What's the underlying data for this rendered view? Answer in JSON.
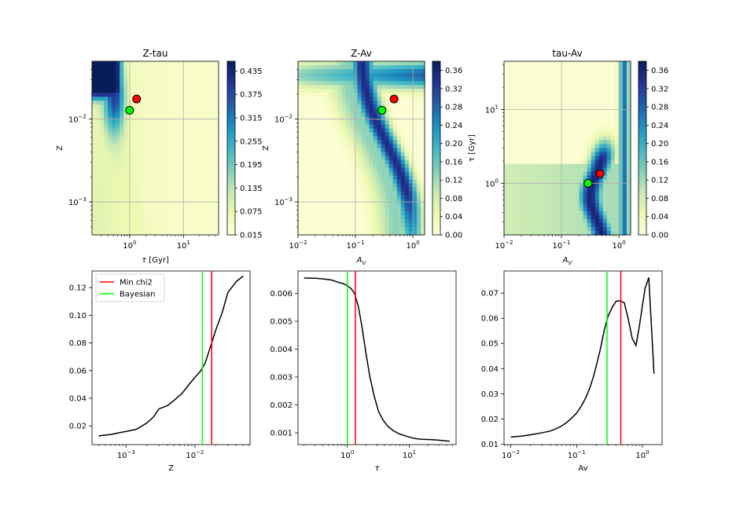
{
  "figure": {
    "colormap_stops": [
      "#ffffd9",
      "#edf8b1",
      "#c7e9b4",
      "#7fcdbb",
      "#41b6c4",
      "#1d91c0",
      "#225ea8",
      "#253494",
      "#081d58"
    ],
    "marker_colors": {
      "min_chi2": "#ff0000",
      "bayesian": "#00ff00",
      "line": "#000000"
    }
  },
  "chart_data": [
    {
      "type": "heatmap",
      "id": "z-tau",
      "title": "Z-tau",
      "xlabel_main": "τ",
      "xlabel_sub": " [Gyr]",
      "ylabel": "Z",
      "xscale": "log",
      "yscale": "log",
      "xlim": [
        0.2,
        45
      ],
      "ylim": [
        0.0004,
        0.05
      ],
      "xticks": [
        {
          "v": 1,
          "b": "10",
          "e": "0"
        },
        {
          "v": 10,
          "b": "10",
          "e": "1"
        }
      ],
      "yticks": [
        {
          "v": 0.001,
          "b": "10",
          "e": "−3"
        },
        {
          "v": 0.01,
          "b": "10",
          "e": "−2"
        }
      ],
      "colorbar": {
        "min": 0.015,
        "max": 0.46,
        "ticks": [
          "0.015",
          "0.075",
          "0.135",
          "0.195",
          "0.255",
          "0.315",
          "0.375",
          "0.435"
        ]
      },
      "red_point": {
        "x": 1.35,
        "y": 0.0175
      },
      "green_point": {
        "x": 1.0,
        "y": 0.0128
      }
    },
    {
      "type": "heatmap",
      "id": "z-av",
      "title": "Z-Av",
      "xlabel_main": "A",
      "xlabel_sub": "V",
      "ylabel": "Z",
      "xscale": "log",
      "yscale": "log",
      "xlim": [
        0.01,
        1.6
      ],
      "ylim": [
        0.0004,
        0.05
      ],
      "xticks": [
        {
          "v": 0.01,
          "b": "10",
          "e": "−2"
        },
        {
          "v": 0.1,
          "b": "10",
          "e": "−1"
        },
        {
          "v": 1,
          "b": "10",
          "e": "0"
        }
      ],
      "yticks": [
        {
          "v": 0.001,
          "b": "10",
          "e": "−3"
        },
        {
          "v": 0.01,
          "b": "10",
          "e": "−2"
        }
      ],
      "colorbar": {
        "min": 0,
        "max": 0.38,
        "ticks": [
          "0.00",
          "0.04",
          "0.08",
          "0.12",
          "0.16",
          "0.20",
          "0.24",
          "0.28",
          "0.32",
          "0.36"
        ]
      },
      "red_point": {
        "x": 0.47,
        "y": 0.0175
      },
      "green_point": {
        "x": 0.29,
        "y": 0.0128
      }
    },
    {
      "type": "heatmap",
      "id": "tau-av",
      "title": "tau-Av",
      "xlabel_main": "A",
      "xlabel_sub": "V",
      "ylabel": "τ [Gyr]",
      "xscale": "log",
      "yscale": "log",
      "xlim": [
        0.01,
        1.6
      ],
      "ylim": [
        0.2,
        45
      ],
      "xticks": [
        {
          "v": 0.01,
          "b": "10",
          "e": "−2"
        },
        {
          "v": 0.1,
          "b": "10",
          "e": "−1"
        },
        {
          "v": 1,
          "b": "10",
          "e": "0"
        }
      ],
      "yticks": [
        {
          "v": 1,
          "b": "10",
          "e": "0"
        },
        {
          "v": 10,
          "b": "10",
          "e": "1"
        }
      ],
      "colorbar": {
        "min": 0,
        "max": 0.38,
        "ticks": [
          "0.00",
          "0.04",
          "0.08",
          "0.12",
          "0.16",
          "0.20",
          "0.24",
          "0.28",
          "0.32",
          "0.36"
        ]
      },
      "red_point": {
        "x": 0.47,
        "y": 1.35
      },
      "green_point": {
        "x": 0.29,
        "y": 1.0
      }
    },
    {
      "type": "line",
      "id": "z-marg",
      "xlabel": "Z",
      "xscale": "log",
      "xlim": [
        0.00032,
        0.063
      ],
      "ylim": [
        0.0065,
        0.132
      ],
      "xticks": [
        {
          "v": 0.001,
          "b": "10",
          "e": "−3"
        },
        {
          "v": 0.01,
          "b": "10",
          "e": "−2"
        }
      ],
      "yticks": [
        "0.02",
        "0.04",
        "0.06",
        "0.08",
        "0.10",
        "0.12"
      ],
      "series": [
        {
          "name": "marginal",
          "x": [
            0.0004,
            0.0005,
            0.0006,
            0.0008,
            0.001,
            0.0014,
            0.002,
            0.0025,
            0.003,
            0.004,
            0.005,
            0.0065,
            0.008,
            0.01,
            0.012,
            0.014,
            0.017,
            0.02,
            0.025,
            0.03,
            0.04,
            0.05
          ],
          "y": [
            0.0128,
            0.0134,
            0.0138,
            0.0151,
            0.016,
            0.0175,
            0.0221,
            0.0265,
            0.0323,
            0.0347,
            0.0386,
            0.0436,
            0.0493,
            0.0551,
            0.0595,
            0.0653,
            0.0781,
            0.0892,
            0.1024,
            0.1164,
            0.1245,
            0.1283
          ]
        }
      ],
      "vlines": [
        {
          "name": "Min chi2",
          "x": 0.0175,
          "color": "#ff0000"
        },
        {
          "name": "Bayesian",
          "x": 0.0128,
          "color": "#00ff00"
        }
      ],
      "legend": {
        "position": "upper-left",
        "entries": [
          "Min chi2",
          "Bayesian"
        ]
      }
    },
    {
      "type": "line",
      "id": "tau-marg",
      "xlabel": "τ",
      "xscale": "log",
      "xlim": [
        0.16,
        57
      ],
      "ylim": [
        0.00058,
        0.0068
      ],
      "xticks": [
        {
          "v": 1,
          "b": "10",
          "e": "0"
        },
        {
          "v": 10,
          "b": "10",
          "e": "1"
        }
      ],
      "yticks": [
        "0.001",
        "0.002",
        "0.003",
        "0.004",
        "0.005",
        "0.006"
      ],
      "series": [
        {
          "name": "marginal",
          "x": [
            0.2,
            0.3,
            0.4,
            0.55,
            0.7,
            0.85,
            1.0,
            1.15,
            1.3,
            1.5,
            1.7,
            2.0,
            2.3,
            2.7,
            3.2,
            3.8,
            4.5,
            5.5,
            7.0,
            9.0,
            12,
            16,
            22,
            30,
            45
          ],
          "y": [
            0.00655,
            0.00654,
            0.00652,
            0.00648,
            0.0064,
            0.00635,
            0.00628,
            0.00617,
            0.00601,
            0.00555,
            0.00488,
            0.00386,
            0.00304,
            0.00234,
            0.00176,
            0.00145,
            0.00124,
            0.00108,
            0.00096,
            0.00088,
            0.0008,
            0.00077,
            0.00076,
            0.00074,
            0.0007
          ]
        }
      ],
      "vlines": [
        {
          "name": "Min chi2",
          "x": 1.35,
          "color": "#ff0000"
        },
        {
          "name": "Bayesian",
          "x": 1.0,
          "color": "#00ff00"
        }
      ]
    },
    {
      "type": "line",
      "id": "av-marg",
      "xlabel": "Av",
      "xscale": "log",
      "xlim": [
        0.0079,
        1.99
      ],
      "ylim": [
        0.0098,
        0.0788
      ],
      "xticks": [
        {
          "v": 0.01,
          "b": "10",
          "e": "−2"
        },
        {
          "v": 0.1,
          "b": "10",
          "e": "−1"
        },
        {
          "v": 1,
          "b": "10",
          "e": "0"
        }
      ],
      "yticks": [
        "0.01",
        "0.02",
        "0.03",
        "0.04",
        "0.05",
        "0.06",
        "0.07"
      ],
      "series": [
        {
          "name": "marginal",
          "x": [
            0.01,
            0.015,
            0.02,
            0.03,
            0.04,
            0.05,
            0.06,
            0.07,
            0.08,
            0.1,
            0.12,
            0.14,
            0.16,
            0.18,
            0.2,
            0.23,
            0.26,
            0.3,
            0.35,
            0.4,
            0.45,
            0.53,
            0.6,
            0.7,
            0.8,
            0.9,
            1.0,
            1.1,
            1.25,
            1.5
          ],
          "y": [
            0.0128,
            0.0132,
            0.0137,
            0.0145,
            0.0152,
            0.0162,
            0.0173,
            0.0185,
            0.0198,
            0.0223,
            0.0254,
            0.0288,
            0.0326,
            0.0367,
            0.0413,
            0.0478,
            0.0547,
            0.0608,
            0.0645,
            0.0668,
            0.067,
            0.0662,
            0.0605,
            0.052,
            0.0492,
            0.057,
            0.065,
            0.072,
            0.0762,
            0.038
          ]
        }
      ],
      "vlines": [
        {
          "name": "Min chi2",
          "x": 0.47,
          "color": "#ff0000"
        },
        {
          "name": "Bayesian",
          "x": 0.29,
          "color": "#00ff00"
        }
      ]
    }
  ]
}
